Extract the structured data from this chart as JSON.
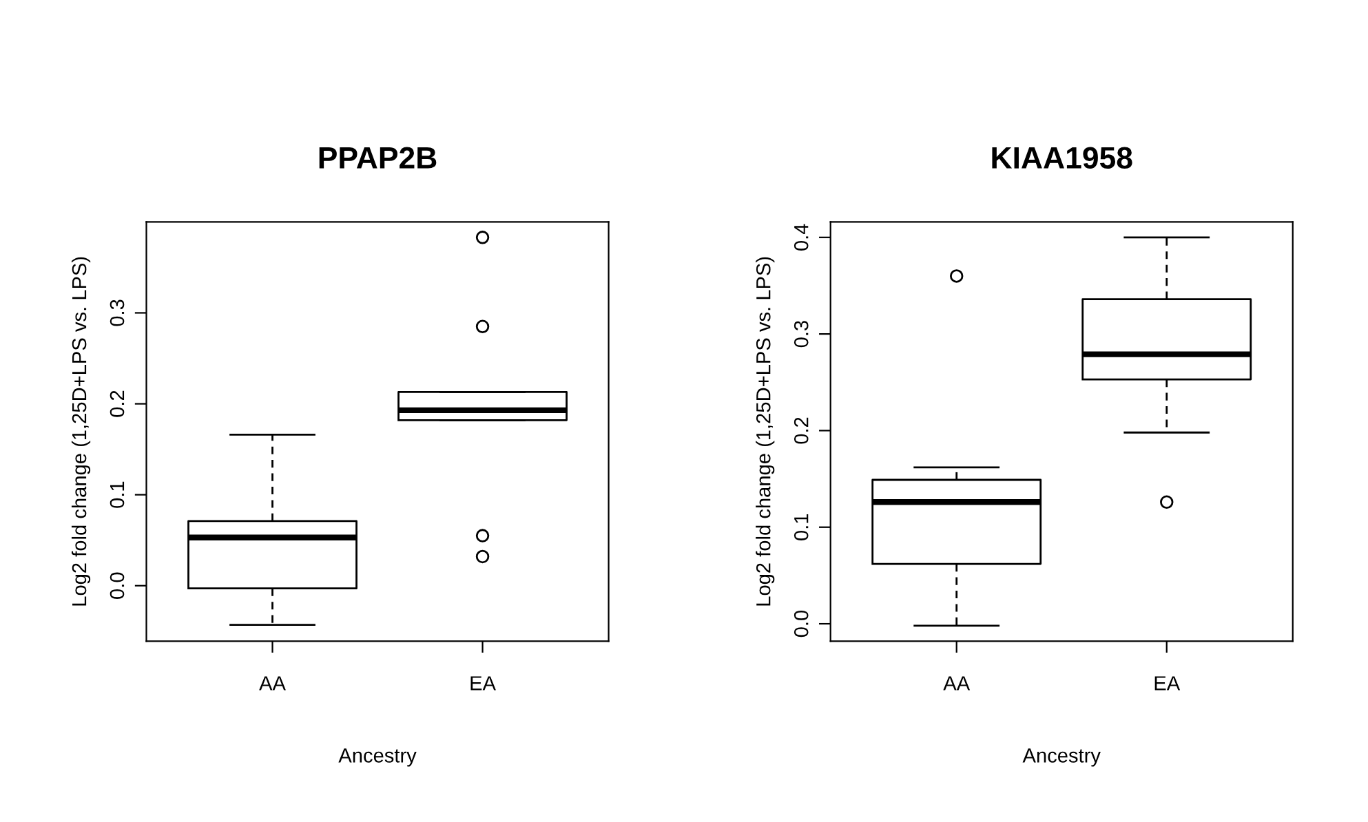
{
  "chart_data": [
    {
      "type": "box",
      "title": "PPAP2B",
      "xlabel": "Ancestry",
      "ylabel": "Log2 fold change (1,25D+LPS vs. LPS)",
      "categories": [
        "AA",
        "EA"
      ],
      "boxes": [
        {
          "low": -0.043,
          "q1": -0.003,
          "median": 0.053,
          "q3": 0.071,
          "high": 0.166
        },
        {
          "low": 0.182,
          "q1": 0.182,
          "median": 0.193,
          "q3": 0.213,
          "high": 0.213,
          "outliers": [
            0.383,
            0.285,
            0.055,
            0.032
          ]
        }
      ],
      "ylim": [
        -0.061,
        0.4
      ],
      "yticks": [
        {
          "value": 0,
          "label": "0.0"
        },
        0.1,
        0.2,
        0.3
      ],
      "grid": false,
      "legend": false
    },
    {
      "type": "box",
      "title": "KIAA1958",
      "xlabel": "Ancestry",
      "ylabel": "Log2 fold change (1,25D+LPS vs. LPS)",
      "categories": [
        "AA",
        "EA"
      ],
      "boxes": [
        {
          "low": -0.002,
          "q1": 0.062,
          "median": 0.126,
          "q3": 0.149,
          "high": 0.162,
          "outliers": [
            0.36
          ]
        },
        {
          "low": 0.198,
          "q1": 0.253,
          "median": 0.279,
          "q3": 0.336,
          "high": 0.4,
          "outliers": [
            0.126
          ]
        }
      ],
      "ylim": [
        -0.018,
        0.416
      ],
      "yticks": [
        {
          "value": 0,
          "label": "0.0"
        },
        0.1,
        0.2,
        0.3,
        0.4
      ],
      "grid": false,
      "legend": false
    }
  ]
}
